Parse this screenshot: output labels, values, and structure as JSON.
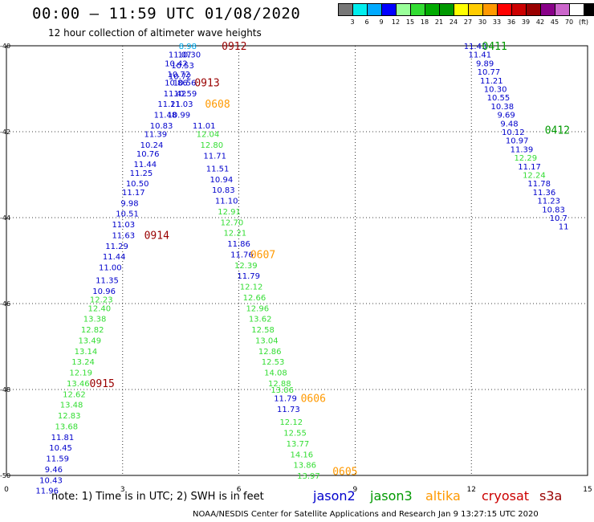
{
  "title": "00:00 – 11:59 UTC 01/08/2020",
  "subtitle": "12 hour collection of altimeter wave heights",
  "legend": {
    "colors": [
      "#777777",
      "#00eeee",
      "#00aaff",
      "#0000ff",
      "#99ff99",
      "#33dd33",
      "#00aa00",
      "#009900",
      "#ffff00",
      "#ffcc00",
      "#ff9900",
      "#ff0000",
      "#cc0000",
      "#990000",
      "#880088",
      "#cc66cc",
      "#ffffff",
      "#000000"
    ],
    "labels": [
      "3",
      "6",
      "9",
      "12",
      "15",
      "18",
      "21",
      "24",
      "27",
      "30",
      "33",
      "36",
      "39",
      "42",
      "45",
      "70",
      "(ft)"
    ]
  },
  "note": "note:  1) Time is in UTC; 2) SWH is in feet",
  "satellites": [
    {
      "name": "jason2",
      "color": "#0000cc"
    },
    {
      "name": "jason3",
      "color": "#009900"
    },
    {
      "name": "altika",
      "color": "#ff9900"
    },
    {
      "name": "cryosat",
      "color": "#cc0000"
    },
    {
      "name": "s3a",
      "color": "#990000"
    }
  ],
  "footer": "NOAA/NESDIS Center for Satellite Applications and Research    Jan  9 13:27:15 UTC 2020",
  "chart_data": {
    "type": "scatter",
    "title": "00:00 – 11:59 UTC 01/08/2020",
    "subtitle": "12 hour collection of altimeter wave heights",
    "xlabel": "",
    "ylabel": "",
    "xlim": [
      0,
      15
    ],
    "ylim": [
      -50,
      -40
    ],
    "xticks": [
      "0",
      "3",
      "6",
      "9",
      "12",
      "15"
    ],
    "yticks": [
      "-40",
      "-42",
      "-44",
      "-46",
      "-48",
      "-50"
    ],
    "grid": true,
    "colors": {
      "blue": "#0000cc",
      "cyan": "#00aaee",
      "green": "#33dd33",
      "dkgreen": "#009900",
      "orange": "#ff9900",
      "maroon": "#990000"
    },
    "pass_labels": [
      {
        "text": "0912",
        "x": 5.88,
        "y": -40.0,
        "c": "maroon"
      },
      {
        "text": "0913",
        "x": 5.18,
        "y": -40.85,
        "c": "maroon"
      },
      {
        "text": "0608",
        "x": 5.45,
        "y": -41.35,
        "c": "orange"
      },
      {
        "text": "0914",
        "x": 3.88,
        "y": -44.4,
        "c": "maroon"
      },
      {
        "text": "0607",
        "x": 6.62,
        "y": -44.85,
        "c": "orange"
      },
      {
        "text": "0915",
        "x": 2.47,
        "y": -47.85,
        "c": "maroon"
      },
      {
        "text": "0606",
        "x": 7.92,
        "y": -48.2,
        "c": "orange"
      },
      {
        "text": "0605",
        "x": 8.74,
        "y": -49.9,
        "c": "orange"
      },
      {
        "text": "0411",
        "x": 12.6,
        "y": -40.0,
        "c": "dkgreen"
      },
      {
        "text": "0412",
        "x": 14.22,
        "y": -41.95,
        "c": "dkgreen"
      }
    ],
    "series": [
      {
        "name": "pass-0913",
        "points": [
          {
            "x": 4.68,
            "y": -40.0,
            "v": "8.98",
            "c": "cyan"
          },
          {
            "x": 4.48,
            "y": -40.2,
            "v": "11.07",
            "c": "blue"
          },
          {
            "x": 4.72,
            "y": -40.2,
            "v": "10.30",
            "c": "blue"
          },
          {
            "x": 4.38,
            "y": -40.4,
            "v": "10.42",
            "c": "blue"
          },
          {
            "x": 4.55,
            "y": -40.45,
            "v": "10.53",
            "c": "blue"
          },
          {
            "x": 4.45,
            "y": -40.65,
            "v": "10.72",
            "c": "blue"
          },
          {
            "x": 4.48,
            "y": -40.7,
            "v": "10.72",
            "c": "blue"
          },
          {
            "x": 4.38,
            "y": -40.85,
            "v": "10.86",
            "c": "blue"
          },
          {
            "x": 4.6,
            "y": -40.85,
            "v": "10.56",
            "c": "blue"
          },
          {
            "x": 4.35,
            "y": -41.1,
            "v": "11.42",
            "c": "blue"
          },
          {
            "x": 4.62,
            "y": -41.1,
            "v": "10.59",
            "c": "blue"
          },
          {
            "x": 4.2,
            "y": -41.35,
            "v": "11.21",
            "c": "blue"
          },
          {
            "x": 4.52,
            "y": -41.35,
            "v": "11.03",
            "c": "blue"
          },
          {
            "x": 4.1,
            "y": -41.6,
            "v": "11.48",
            "c": "blue"
          },
          {
            "x": 4.45,
            "y": -41.6,
            "v": "10.99",
            "c": "blue"
          },
          {
            "x": 4.0,
            "y": -41.85,
            "v": "10.83",
            "c": "blue"
          },
          {
            "x": 3.85,
            "y": -42.05,
            "v": "11.39",
            "c": "blue"
          },
          {
            "x": 3.75,
            "y": -42.3,
            "v": "10.24",
            "c": "blue"
          },
          {
            "x": 3.65,
            "y": -42.5,
            "v": "10.76",
            "c": "blue"
          },
          {
            "x": 3.58,
            "y": -42.75,
            "v": "11.44",
            "c": "blue"
          },
          {
            "x": 3.48,
            "y": -42.95,
            "v": "11.25",
            "c": "blue"
          },
          {
            "x": 3.38,
            "y": -43.2,
            "v": "10.50",
            "c": "blue"
          },
          {
            "x": 3.28,
            "y": -43.4,
            "v": "11.17",
            "c": "blue"
          },
          {
            "x": 3.18,
            "y": -43.65,
            "v": "9.98",
            "c": "blue"
          },
          {
            "x": 3.12,
            "y": -43.9,
            "v": "10.51",
            "c": "blue"
          },
          {
            "x": 3.02,
            "y": -44.15,
            "v": "11.03",
            "c": "blue"
          },
          {
            "x": 3.02,
            "y": -44.4,
            "v": "11.63",
            "c": "blue"
          },
          {
            "x": 2.85,
            "y": -44.65,
            "v": "11.29",
            "c": "blue"
          },
          {
            "x": 2.78,
            "y": -44.9,
            "v": "11.44",
            "c": "blue"
          },
          {
            "x": 2.68,
            "y": -45.15,
            "v": "11.00",
            "c": "blue"
          },
          {
            "x": 2.6,
            "y": -45.45,
            "v": "11.35",
            "c": "blue"
          },
          {
            "x": 2.52,
            "y": -45.7,
            "v": "10.96",
            "c": "blue"
          },
          {
            "x": 2.45,
            "y": -45.9,
            "v": "12.23",
            "c": "green"
          },
          {
            "x": 2.4,
            "y": -46.1,
            "v": "12.40",
            "c": "green"
          },
          {
            "x": 2.28,
            "y": -46.35,
            "v": "13.38",
            "c": "green"
          },
          {
            "x": 2.22,
            "y": -46.6,
            "v": "12.82",
            "c": "green"
          },
          {
            "x": 2.15,
            "y": -46.85,
            "v": "13.49",
            "c": "green"
          },
          {
            "x": 2.05,
            "y": -47.1,
            "v": "13.14",
            "c": "green"
          },
          {
            "x": 1.98,
            "y": -47.35,
            "v": "13.24",
            "c": "green"
          },
          {
            "x": 1.92,
            "y": -47.6,
            "v": "12.19",
            "c": "green"
          },
          {
            "x": 1.85,
            "y": -47.85,
            "v": "13.46",
            "c": "green"
          },
          {
            "x": 1.75,
            "y": -48.1,
            "v": "12.62",
            "c": "green"
          },
          {
            "x": 1.68,
            "y": -48.35,
            "v": "13.48",
            "c": "green"
          },
          {
            "x": 1.62,
            "y": -48.6,
            "v": "12.83",
            "c": "green"
          },
          {
            "x": 1.55,
            "y": -48.85,
            "v": "13.68",
            "c": "green"
          },
          {
            "x": 1.45,
            "y": -49.1,
            "v": "11.81",
            "c": "blue"
          },
          {
            "x": 1.4,
            "y": -49.35,
            "v": "10.45",
            "c": "blue"
          },
          {
            "x": 1.32,
            "y": -49.6,
            "v": "11.59",
            "c": "blue"
          },
          {
            "x": 1.22,
            "y": -49.85,
            "v": "9.46",
            "c": "blue"
          },
          {
            "x": 1.15,
            "y": -50.1,
            "v": "10.43",
            "c": "blue"
          },
          {
            "x": 1.05,
            "y": -50.35,
            "v": "11.96",
            "c": "blue"
          }
        ]
      },
      {
        "name": "pass-0606",
        "points": [
          {
            "x": 5.1,
            "y": -41.85,
            "v": "11.01",
            "c": "blue"
          },
          {
            "x": 5.2,
            "y": -42.05,
            "v": "12.04",
            "c": "green"
          },
          {
            "x": 5.3,
            "y": -42.3,
            "v": "12.80",
            "c": "green"
          },
          {
            "x": 5.38,
            "y": -42.55,
            "v": "11.71",
            "c": "blue"
          },
          {
            "x": 5.45,
            "y": -42.85,
            "v": "11.51",
            "c": "blue"
          },
          {
            "x": 5.55,
            "y": -43.1,
            "v": "10.94",
            "c": "blue"
          },
          {
            "x": 5.6,
            "y": -43.35,
            "v": "10.83",
            "c": "blue"
          },
          {
            "x": 5.68,
            "y": -43.6,
            "v": "11.10",
            "c": "blue"
          },
          {
            "x": 5.75,
            "y": -43.85,
            "v": "12.91",
            "c": "green"
          },
          {
            "x": 5.82,
            "y": -44.1,
            "v": "12.70",
            "c": "green"
          },
          {
            "x": 5.9,
            "y": -44.35,
            "v": "12.21",
            "c": "green"
          },
          {
            "x": 6.0,
            "y": -44.6,
            "v": "11.86",
            "c": "blue"
          },
          {
            "x": 6.08,
            "y": -44.85,
            "v": "11.76",
            "c": "blue"
          },
          {
            "x": 6.18,
            "y": -45.1,
            "v": "12.39",
            "c": "green"
          },
          {
            "x": 6.25,
            "y": -45.35,
            "v": "11.79",
            "c": "blue"
          },
          {
            "x": 6.32,
            "y": -45.6,
            "v": "12.12",
            "c": "green"
          },
          {
            "x": 6.4,
            "y": -45.85,
            "v": "12.66",
            "c": "green"
          },
          {
            "x": 6.48,
            "y": -46.1,
            "v": "12.96",
            "c": "green"
          },
          {
            "x": 6.55,
            "y": -46.35,
            "v": "13.62",
            "c": "green"
          },
          {
            "x": 6.62,
            "y": -46.6,
            "v": "12.58",
            "c": "green"
          },
          {
            "x": 6.72,
            "y": -46.85,
            "v": "13.04",
            "c": "green"
          },
          {
            "x": 6.8,
            "y": -47.1,
            "v": "12.86",
            "c": "green"
          },
          {
            "x": 6.88,
            "y": -47.35,
            "v": "12.53",
            "c": "green"
          },
          {
            "x": 6.95,
            "y": -47.6,
            "v": "14.08",
            "c": "green"
          },
          {
            "x": 7.05,
            "y": -47.85,
            "v": "12.88",
            "c": "green"
          },
          {
            "x": 7.12,
            "y": -48.0,
            "v": "13.06",
            "c": "green"
          },
          {
            "x": 7.2,
            "y": -48.2,
            "v": "11.79",
            "c": "blue"
          },
          {
            "x": 7.28,
            "y": -48.45,
            "v": "11.73",
            "c": "blue"
          },
          {
            "x": 7.35,
            "y": -48.75,
            "v": "12.12",
            "c": "green"
          },
          {
            "x": 7.45,
            "y": -49.0,
            "v": "12.55",
            "c": "green"
          },
          {
            "x": 7.52,
            "y": -49.25,
            "v": "13.77",
            "c": "green"
          },
          {
            "x": 7.62,
            "y": -49.5,
            "v": "14.16",
            "c": "green"
          },
          {
            "x": 7.7,
            "y": -49.75,
            "v": "13.86",
            "c": "green"
          },
          {
            "x": 7.8,
            "y": -50.0,
            "v": "13.97",
            "c": "green"
          }
        ]
      },
      {
        "name": "pass-0411",
        "points": [
          {
            "x": 12.1,
            "y": -40.0,
            "v": "11.43",
            "c": "blue"
          },
          {
            "x": 12.22,
            "y": -40.2,
            "v": "11.41",
            "c": "blue"
          },
          {
            "x": 12.35,
            "y": -40.4,
            "v": "9.89",
            "c": "blue"
          },
          {
            "x": 12.45,
            "y": -40.6,
            "v": "10.77",
            "c": "blue"
          },
          {
            "x": 12.52,
            "y": -40.8,
            "v": "11.21",
            "c": "blue"
          },
          {
            "x": 12.62,
            "y": -41.0,
            "v": "10.30",
            "c": "blue"
          },
          {
            "x": 12.7,
            "y": -41.2,
            "v": "10.55",
            "c": "blue"
          },
          {
            "x": 12.8,
            "y": -41.4,
            "v": "10.38",
            "c": "blue"
          },
          {
            "x": 12.9,
            "y": -41.6,
            "v": "9.69",
            "c": "blue"
          },
          {
            "x": 12.98,
            "y": -41.8,
            "v": "9.48",
            "c": "blue"
          },
          {
            "x": 13.08,
            "y": -42.0,
            "v": "10.12",
            "c": "blue"
          },
          {
            "x": 13.18,
            "y": -42.2,
            "v": "10.97",
            "c": "blue"
          },
          {
            "x": 13.3,
            "y": -42.4,
            "v": "11.39",
            "c": "blue"
          },
          {
            "x": 13.4,
            "y": -42.6,
            "v": "12.29",
            "c": "green"
          },
          {
            "x": 13.5,
            "y": -42.8,
            "v": "11.17",
            "c": "blue"
          },
          {
            "x": 13.62,
            "y": -43.0,
            "v": "12.24",
            "c": "green"
          },
          {
            "x": 13.75,
            "y": -43.2,
            "v": "11.78",
            "c": "blue"
          },
          {
            "x": 13.88,
            "y": -43.4,
            "v": "11.36",
            "c": "blue"
          },
          {
            "x": 14.0,
            "y": -43.6,
            "v": "11.23",
            "c": "blue"
          },
          {
            "x": 14.12,
            "y": -43.8,
            "v": "10.83",
            "c": "blue"
          },
          {
            "x": 14.25,
            "y": -44.0,
            "v": "10.7",
            "c": "blue"
          },
          {
            "x": 14.38,
            "y": -44.2,
            "v": "11",
            "c": "blue"
          }
        ]
      }
    ]
  }
}
